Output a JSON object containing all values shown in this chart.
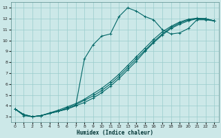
{
  "xlabel": "Humidex (Indice chaleur)",
  "bg_color": "#cce8e8",
  "line_color": "#006666",
  "grid_color": "#99cccc",
  "xlim": [
    -0.5,
    23.5
  ],
  "ylim": [
    2.5,
    13.5
  ],
  "xticks": [
    0,
    1,
    2,
    3,
    4,
    5,
    6,
    7,
    8,
    9,
    10,
    11,
    12,
    13,
    14,
    15,
    16,
    17,
    18,
    19,
    20,
    21,
    22,
    23
  ],
  "yticks": [
    3,
    4,
    5,
    6,
    7,
    8,
    9,
    10,
    11,
    12,
    13
  ],
  "main_line_x": [
    0,
    1,
    2,
    3,
    4,
    5,
    6,
    7,
    8,
    9,
    10,
    11,
    12,
    13,
    14,
    15,
    16,
    17,
    18,
    19,
    20,
    21,
    22,
    23
  ],
  "main_line_y": [
    3.7,
    3.1,
    3.0,
    3.1,
    3.3,
    3.5,
    3.7,
    4.0,
    8.3,
    9.6,
    10.4,
    10.6,
    12.2,
    13.0,
    12.7,
    12.2,
    11.9,
    11.0,
    10.6,
    10.7,
    11.1,
    11.9,
    11.9,
    11.8
  ],
  "line2_x": [
    0,
    1,
    2,
    3,
    4,
    5,
    6,
    7,
    8,
    9,
    10,
    11,
    12,
    13,
    14,
    15,
    16,
    17,
    18,
    19,
    20,
    21,
    22,
    23
  ],
  "line2_y": [
    3.7,
    3.2,
    3.0,
    3.1,
    3.3,
    3.5,
    3.7,
    4.0,
    4.3,
    4.7,
    5.2,
    5.8,
    6.5,
    7.3,
    8.1,
    9.0,
    9.8,
    10.5,
    11.1,
    11.5,
    11.8,
    12.0,
    12.0,
    11.8
  ],
  "line3_x": [
    0,
    1,
    2,
    3,
    4,
    5,
    6,
    7,
    8,
    9,
    10,
    11,
    12,
    13,
    14,
    15,
    16,
    17,
    18,
    19,
    20,
    21,
    22,
    23
  ],
  "line3_y": [
    3.7,
    3.2,
    3.0,
    3.1,
    3.3,
    3.5,
    3.8,
    4.1,
    4.5,
    4.9,
    5.4,
    6.0,
    6.7,
    7.5,
    8.3,
    9.1,
    9.9,
    10.6,
    11.2,
    11.6,
    11.9,
    12.0,
    12.0,
    11.8
  ],
  "line4_x": [
    0,
    1,
    2,
    3,
    4,
    5,
    6,
    7,
    8,
    9,
    10,
    11,
    12,
    13,
    14,
    15,
    16,
    17,
    18,
    19,
    20,
    21,
    22,
    23
  ],
  "line4_y": [
    3.7,
    3.2,
    3.0,
    3.1,
    3.35,
    3.6,
    3.9,
    4.2,
    4.6,
    5.1,
    5.6,
    6.2,
    6.9,
    7.7,
    8.5,
    9.3,
    10.1,
    10.8,
    11.3,
    11.7,
    11.95,
    12.05,
    12.0,
    11.8
  ]
}
